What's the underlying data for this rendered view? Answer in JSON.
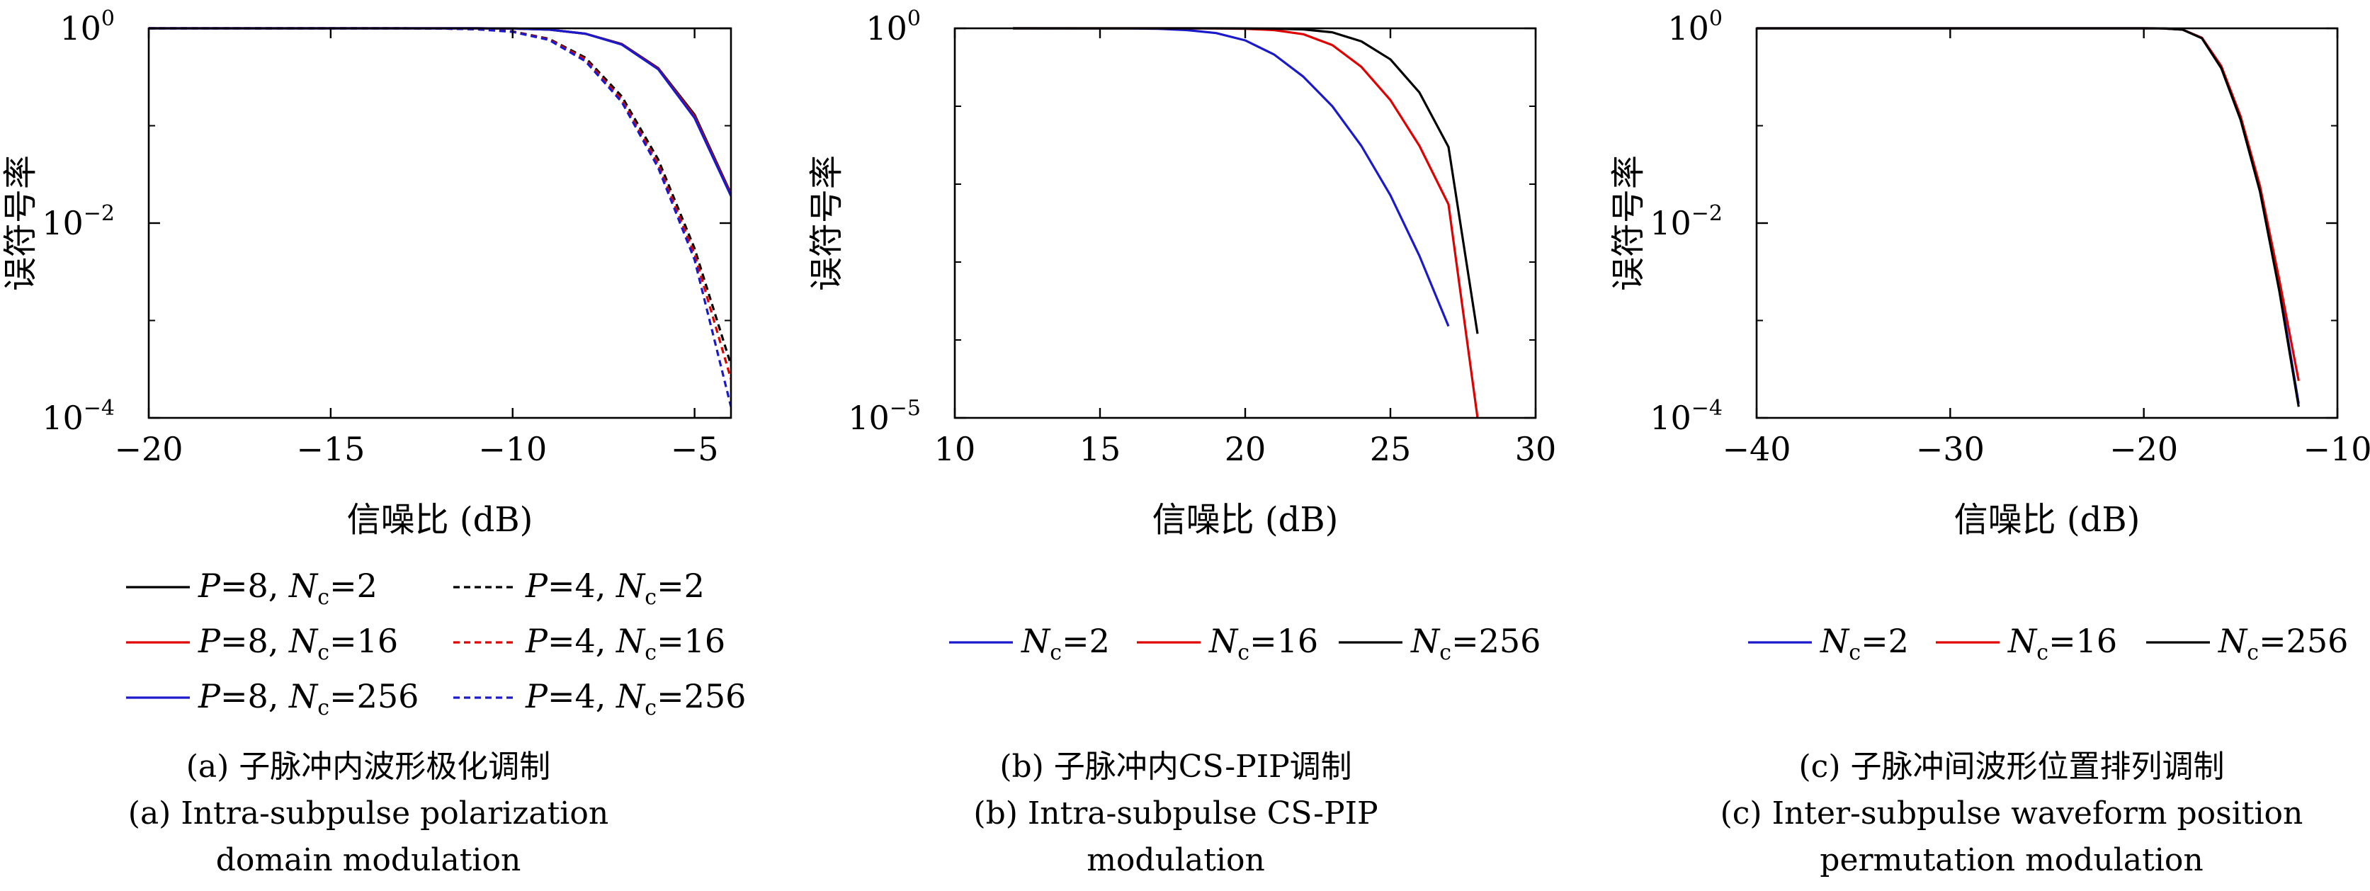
{
  "chart_data": [
    {
      "type": "line",
      "yscale": "log",
      "xlabel": "信噪比 (dB)",
      "ylabel": "误符号率",
      "xlim": [
        -20,
        -4
      ],
      "ylim": [
        0.0001,
        1
      ],
      "xticks": [
        -20,
        -15,
        -10,
        -5
      ],
      "xtick_labels": [
        "−20",
        "−15",
        "−10",
        "−5"
      ],
      "yticks": [
        1,
        0.01,
        0.0001
      ],
      "ytick_labels": [
        [
          "10",
          "0"
        ],
        [
          "10",
          "−2"
        ],
        [
          "10",
          "−4"
        ]
      ],
      "grid": false,
      "legend_columns": 2,
      "legend": [
        {
          "p": "P",
          "p_val": "=8, ",
          "n": "N",
          "n_sub": "c",
          "n_val": "=2",
          "color": "#000000",
          "dash": false
        },
        {
          "p": "P",
          "p_val": "=8, ",
          "n": "N",
          "n_sub": "c",
          "n_val": "=16",
          "color": "#e00000",
          "dash": false
        },
        {
          "p": "P",
          "p_val": "=8, ",
          "n": "N",
          "n_sub": "c",
          "n_val": "=256",
          "color": "#1a1acc",
          "dash": false
        },
        {
          "p": "P",
          "p_val": "=4, ",
          "n": "N",
          "n_sub": "c",
          "n_val": "=2",
          "color": "#000000",
          "dash": true
        },
        {
          "p": "P",
          "p_val": "=4, ",
          "n": "N",
          "n_sub": "c",
          "n_val": "=16",
          "color": "#e00000",
          "dash": true
        },
        {
          "p": "P",
          "p_val": "=4, ",
          "n": "N",
          "n_sub": "c",
          "n_val": "=256",
          "color": "#1a1acc",
          "dash": true
        }
      ],
      "series": [
        {
          "color": "#000000",
          "dash": false,
          "x": [
            -20,
            -11,
            -10,
            -9,
            -8,
            -7,
            -6,
            -5,
            -4
          ],
          "y": [
            1,
            1,
            0.995,
            0.97,
            0.88,
            0.69,
            0.39,
            0.13,
            0.02
          ]
        },
        {
          "color": "#e00000",
          "dash": false,
          "x": [
            -20,
            -11,
            -10,
            -9,
            -8,
            -7,
            -6,
            -5,
            -4
          ],
          "y": [
            1,
            1,
            0.995,
            0.97,
            0.88,
            0.685,
            0.385,
            0.125,
            0.0195
          ]
        },
        {
          "color": "#1a1acc",
          "dash": false,
          "x": [
            -20,
            -11,
            -10,
            -9,
            -8,
            -7,
            -6,
            -5,
            -4
          ],
          "y": [
            1,
            1,
            0.995,
            0.97,
            0.88,
            0.68,
            0.38,
            0.12,
            0.019
          ]
        },
        {
          "color": "#000000",
          "dash": true,
          "x": [
            -20,
            -13,
            -12,
            -11,
            -10,
            -9,
            -8,
            -7,
            -6,
            -5,
            -4
          ],
          "y": [
            1,
            1,
            0.995,
            0.98,
            0.93,
            0.78,
            0.5,
            0.2,
            0.045,
            0.0055,
            0.00035
          ]
        },
        {
          "color": "#e00000",
          "dash": true,
          "x": [
            -20,
            -13,
            -12,
            -11,
            -10,
            -9,
            -8,
            -7,
            -6,
            -5,
            -4
          ],
          "y": [
            1,
            1,
            0.995,
            0.98,
            0.925,
            0.77,
            0.48,
            0.185,
            0.04,
            0.0048,
            0.00025
          ]
        },
        {
          "color": "#1a1acc",
          "dash": true,
          "x": [
            -20,
            -13,
            -12,
            -11,
            -10,
            -9,
            -8,
            -7,
            -6,
            -5,
            -4
          ],
          "y": [
            1,
            1,
            0.995,
            0.98,
            0.92,
            0.76,
            0.46,
            0.175,
            0.037,
            0.0042,
            0.00013
          ]
        }
      ],
      "caption_cn": "(a) 子脉冲内波形极化调制",
      "caption_en": [
        "(a) Intra-subpulse polarization",
        "domain modulation"
      ]
    },
    {
      "type": "line",
      "yscale": "log",
      "xlabel": "信噪比 (dB)",
      "ylabel": "误符号率",
      "xlim": [
        10,
        30
      ],
      "ylim": [
        1e-05,
        1
      ],
      "xticks": [
        10,
        15,
        20,
        25,
        30
      ],
      "xtick_labels": [
        "10",
        "15",
        "20",
        "25",
        "30"
      ],
      "yticks": [
        1,
        1e-05
      ],
      "ytick_labels": [
        [
          "10",
          "0"
        ],
        [
          "10",
          "−5"
        ]
      ],
      "grid": false,
      "legend_columns": 3,
      "legend": [
        {
          "n": "N",
          "n_sub": "c",
          "n_val": "=2",
          "color": "#1a1acc",
          "dash": false
        },
        {
          "n": "N",
          "n_sub": "c",
          "n_val": "=16",
          "color": "#e00000",
          "dash": false
        },
        {
          "n": "N",
          "n_sub": "c",
          "n_val": "=256",
          "color": "#000000",
          "dash": false
        }
      ],
      "series": [
        {
          "color": "#1a1acc",
          "dash": false,
          "x": [
            12,
            16,
            17,
            18,
            19,
            20,
            21,
            22,
            23,
            24,
            25,
            26,
            27
          ],
          "y": [
            1,
            0.995,
            0.985,
            0.95,
            0.87,
            0.7,
            0.46,
            0.24,
            0.1,
            0.031,
            0.0072,
            0.0012,
            0.00015
          ]
        },
        {
          "color": "#e00000",
          "dash": false,
          "x": [
            12,
            18,
            19,
            20,
            21,
            22,
            23,
            24,
            25,
            26,
            27,
            28
          ],
          "y": [
            1,
            1,
            0.995,
            0.985,
            0.95,
            0.84,
            0.61,
            0.32,
            0.12,
            0.031,
            0.0055,
            1e-05
          ]
        },
        {
          "color": "#000000",
          "dash": false,
          "x": [
            12,
            19,
            20,
            21,
            22,
            23,
            24,
            25,
            26,
            27,
            28
          ],
          "y": [
            1,
            1,
            0.998,
            0.99,
            0.97,
            0.89,
            0.68,
            0.4,
            0.15,
            0.03,
            0.00012
          ]
        }
      ],
      "caption_cn": "(b) 子脉冲内CS-PIP调制",
      "caption_en": [
        "(b) Intra-subpulse CS-PIP",
        "modulation"
      ]
    },
    {
      "type": "line",
      "yscale": "log",
      "xlabel": "信噪比 (dB)",
      "ylabel": "误符号率",
      "xlim": [
        -40,
        -10
      ],
      "ylim": [
        0.0001,
        1
      ],
      "xticks": [
        -40,
        -30,
        -20,
        -10
      ],
      "xtick_labels": [
        "−40",
        "−30",
        "−20",
        "−10"
      ],
      "yticks": [
        1,
        0.01,
        0.0001
      ],
      "ytick_labels": [
        [
          "10",
          "0"
        ],
        [
          "10",
          "−2"
        ],
        [
          "10",
          "−4"
        ]
      ],
      "grid": false,
      "legend_columns": 3,
      "legend": [
        {
          "n": "N",
          "n_sub": "c",
          "n_val": "=2",
          "color": "#1a1acc",
          "dash": false
        },
        {
          "n": "N",
          "n_sub": "c",
          "n_val": "=16",
          "color": "#e00000",
          "dash": false
        },
        {
          "n": "N",
          "n_sub": "c",
          "n_val": "=256",
          "color": "#000000",
          "dash": false
        }
      ],
      "series": [
        {
          "color": "#1a1acc",
          "dash": false,
          "x": [
            -40,
            -20,
            -19,
            -18,
            -17,
            -16,
            -15,
            -14,
            -13,
            -12
          ],
          "y": [
            1,
            1,
            0.998,
            0.97,
            0.8,
            0.4,
            0.12,
            0.022,
            0.0022,
            0.00014
          ]
        },
        {
          "color": "#e00000",
          "dash": false,
          "x": [
            -40,
            -20,
            -19,
            -18,
            -17,
            -16,
            -15,
            -14,
            -13,
            -12
          ],
          "y": [
            1,
            1,
            0.998,
            0.97,
            0.8,
            0.41,
            0.125,
            0.024,
            0.0026,
            0.00024
          ]
        },
        {
          "color": "#000000",
          "dash": false,
          "x": [
            -40,
            -20,
            -19,
            -18,
            -17,
            -16,
            -15,
            -14,
            -13,
            -12
          ],
          "y": [
            1,
            1,
            0.998,
            0.97,
            0.79,
            0.39,
            0.115,
            0.021,
            0.002,
            0.00013
          ]
        }
      ],
      "caption_cn": "(c) 子脉冲间波形位置排列调制",
      "caption_en": [
        "(c) Inter-subpulse waveform position",
        "permutation modulation"
      ]
    }
  ]
}
